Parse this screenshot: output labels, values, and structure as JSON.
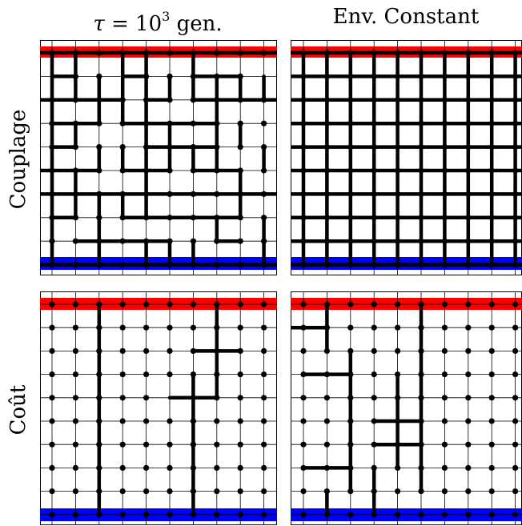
{
  "titles": {
    "col_left_symbol": "τ",
    "col_left_eq": " = 10",
    "col_left_exp": "3",
    "col_left_unit": " gen.",
    "col_right": "Env. Constant",
    "row_top": "Couplage",
    "row_bottom": "Coût"
  },
  "colors": {
    "top_band": "#ff0000",
    "bottom_band": "#0000ff",
    "grid": "#000000",
    "background": "#ffffff"
  },
  "lattice": {
    "columns": 10,
    "rows": 10,
    "note_thick": "thick segments are strong links between adjacent nodes"
  },
  "panels": [
    {
      "id": "couplage-tau",
      "thick_h": [
        "1111111111",
        "0100100110",
        "1111010111",
        "0110111100",
        "0100011100",
        "1110110110",
        "1111111111",
        "0100111110",
        "0011110010",
        "1111111111"
      ],
      "thick_v": [
        "1101101000",
        "1111111111",
        "1011100100",
        "1100110110",
        "1011111101",
        "1100100010",
        "1111100010",
        "1010000101",
        "1010111001"
      ],
      "dots": [
        "1111111111",
        "0110111110",
        "1111111111",
        "1111111111",
        "1111111111",
        "1111111111",
        "1111111111",
        "1111111111",
        "1111111111",
        "1111111111"
      ]
    },
    {
      "id": "couplage-const",
      "thick_h": [
        "1111111111",
        "1111111111",
        "1111111111",
        "1111111111",
        "1111111111",
        "1111111111",
        "1111111111",
        "1111111111",
        "1111111111",
        "1111111111"
      ],
      "thick_v": [
        "1111111111",
        "1111111111",
        "1111111111",
        "1111111111",
        "1111111111",
        "1111111111",
        "1111111111",
        "1111111111",
        "1111111111"
      ],
      "dots": [
        "1111111111",
        "1111111111",
        "1111111111",
        "1111111111",
        "1111111111",
        "1111111111",
        "1111111111",
        "1111111111",
        "1111111111",
        "1111111111"
      ]
    },
    {
      "id": "cout-tau",
      "thick_h": [
        "0000000000",
        "0000000000",
        "0000000110",
        "0000000000",
        "0000001100",
        "0000000000",
        "0000000000",
        "0000000000",
        "0000000000",
        "0000000000"
      ],
      "thick_v": [
        "0010000100",
        "0010000100",
        "0010000100",
        "0010001100",
        "0010001000",
        "0010001000",
        "0010001000",
        "0010001000",
        "0010001000"
      ],
      "dots": [
        "1111111111",
        "1111111111",
        "1111111111",
        "1111111111",
        "1111101111",
        "1111111111",
        "1111111111",
        "1111111111",
        "1111111111",
        "1111111111"
      ]
    },
    {
      "id": "cout-const",
      "thick_h": [
        "0000000000",
        "1100000000",
        "0000000000",
        "0110000000",
        "0000000000",
        "0000110000",
        "0000110000",
        "0110000000",
        "0000000000",
        "0000000000"
      ],
      "thick_v": [
        "0100010000",
        "0100010000",
        "0010010000",
        "0010110000",
        "0010110000",
        "0010110000",
        "0010110000",
        "0011010000",
        "0101000000"
      ],
      "dots": [
        "1111111111",
        "1111111111",
        "1111111111",
        "1111111111",
        "1111111111",
        "1111111111",
        "1111111111",
        "1111111111",
        "1111111111",
        "1111111111"
      ]
    }
  ]
}
